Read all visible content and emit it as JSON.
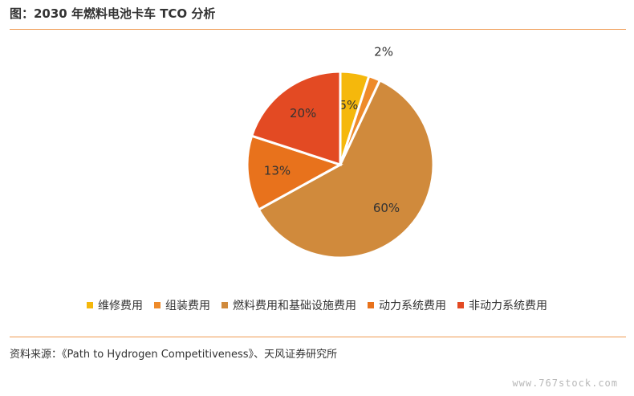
{
  "title": "图：2030 年燃料电池卡车 TCO 分析",
  "chart_data": {
    "type": "pie",
    "title": "",
    "series": [
      {
        "name": "维修费用",
        "value": 5,
        "label": "5%",
        "color": "#f5b80c"
      },
      {
        "name": "组装费用",
        "value": 2,
        "label": "2%",
        "color": "#ee8a2a"
      },
      {
        "name": "燃料费用和基础设施费用",
        "value": 60,
        "label": "60%",
        "color": "#d08a3c"
      },
      {
        "name": "动力系统费用",
        "value": 13,
        "label": "13%",
        "color": "#e8721c"
      },
      {
        "name": "非动力系统费用",
        "value": 20,
        "label": "20%",
        "color": "#e34a23"
      }
    ],
    "legend_position": "bottom"
  },
  "source": "资料来源：《Path to Hydrogen Competitiveness》、天风证券研究所",
  "watermark": "www.767stock.com"
}
